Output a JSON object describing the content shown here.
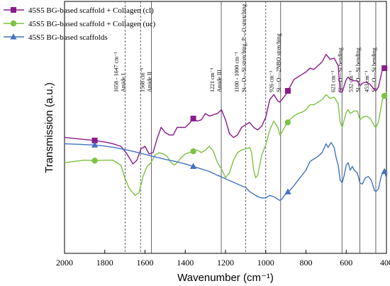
{
  "chart_data": {
    "type": "line",
    "title": "",
    "xlabel": "Wavenumber (cm⁻¹)",
    "ylabel": "Transmission (a.u.)",
    "xlim": [
      2000,
      400
    ],
    "x_reversed": true,
    "xticks": [
      2000,
      1800,
      1600,
      1400,
      1200,
      1000,
      800,
      600,
      400
    ],
    "y_ticks_shown": false,
    "grid": false,
    "legend_position": "top-left",
    "series": [
      {
        "name": "45S5 BG-based scaffold + Collagen (cl)",
        "color": "#8b1a8b",
        "marker": "square",
        "marker_x": [
          1850,
          1360,
          890,
          410
        ],
        "points": [
          [
            2000,
            0.46
          ],
          [
            1900,
            0.452
          ],
          [
            1850,
            0.448
          ],
          [
            1800,
            0.442
          ],
          [
            1760,
            0.435
          ],
          [
            1720,
            0.425
          ],
          [
            1690,
            0.395
          ],
          [
            1660,
            0.355
          ],
          [
            1640,
            0.37
          ],
          [
            1620,
            0.415
          ],
          [
            1600,
            0.425
          ],
          [
            1580,
            0.395
          ],
          [
            1560,
            0.4
          ],
          [
            1540,
            0.455
          ],
          [
            1520,
            0.5
          ],
          [
            1500,
            0.48
          ],
          [
            1480,
            0.47
          ],
          [
            1460,
            0.47
          ],
          [
            1440,
            0.5
          ],
          [
            1420,
            0.5
          ],
          [
            1400,
            0.5
          ],
          [
            1380,
            0.515
          ],
          [
            1360,
            0.535
          ],
          [
            1340,
            0.525
          ],
          [
            1320,
            0.53
          ],
          [
            1300,
            0.555
          ],
          [
            1280,
            0.545
          ],
          [
            1260,
            0.55
          ],
          [
            1240,
            0.555
          ],
          [
            1220,
            0.57
          ],
          [
            1200,
            0.53
          ],
          [
            1180,
            0.475
          ],
          [
            1160,
            0.46
          ],
          [
            1140,
            0.47
          ],
          [
            1120,
            0.5
          ],
          [
            1100,
            0.51
          ],
          [
            1080,
            0.52
          ],
          [
            1060,
            0.5
          ],
          [
            1040,
            0.49
          ],
          [
            1020,
            0.505
          ],
          [
            1000,
            0.54
          ],
          [
            980,
            0.61
          ],
          [
            960,
            0.63
          ],
          [
            940,
            0.605
          ],
          [
            930,
            0.6
          ],
          [
            920,
            0.61
          ],
          [
            900,
            0.63
          ],
          [
            880,
            0.66
          ],
          [
            860,
            0.69
          ],
          [
            840,
            0.7
          ],
          [
            820,
            0.71
          ],
          [
            800,
            0.72
          ],
          [
            780,
            0.735
          ],
          [
            760,
            0.73
          ],
          [
            740,
            0.745
          ],
          [
            720,
            0.76
          ],
          [
            700,
            0.79
          ],
          [
            680,
            0.77
          ],
          [
            660,
            0.775
          ],
          [
            640,
            0.745
          ],
          [
            630,
            0.64
          ],
          [
            620,
            0.64
          ],
          [
            600,
            0.69
          ],
          [
            590,
            0.7
          ],
          [
            580,
            0.69
          ],
          [
            560,
            0.685
          ],
          [
            545,
            0.685
          ],
          [
            532,
            0.665
          ],
          [
            520,
            0.675
          ],
          [
            500,
            0.68
          ],
          [
            480,
            0.67
          ],
          [
            460,
            0.65
          ],
          [
            453,
            0.645
          ],
          [
            440,
            0.66
          ],
          [
            420,
            0.73
          ],
          [
            400,
            0.74
          ]
        ]
      },
      {
        "name": "45S5 BG-based scaffold + Collagen (uc)",
        "color": "#7dc242",
        "marker": "circle",
        "marker_x": [
          1850,
          1360,
          890,
          410
        ],
        "points": [
          [
            2000,
            0.36
          ],
          [
            1900,
            0.37
          ],
          [
            1850,
            0.368
          ],
          [
            1800,
            0.37
          ],
          [
            1760,
            0.37
          ],
          [
            1720,
            0.35
          ],
          [
            1700,
            0.3
          ],
          [
            1680,
            0.26
          ],
          [
            1650,
            0.23
          ],
          [
            1630,
            0.24
          ],
          [
            1610,
            0.305
          ],
          [
            1590,
            0.345
          ],
          [
            1570,
            0.36
          ],
          [
            1550,
            0.39
          ],
          [
            1530,
            0.4
          ],
          [
            1510,
            0.395
          ],
          [
            1490,
            0.385
          ],
          [
            1470,
            0.36
          ],
          [
            1455,
            0.35
          ],
          [
            1440,
            0.36
          ],
          [
            1420,
            0.38
          ],
          [
            1400,
            0.395
          ],
          [
            1380,
            0.4
          ],
          [
            1360,
            0.405
          ],
          [
            1340,
            0.41
          ],
          [
            1320,
            0.4
          ],
          [
            1300,
            0.41
          ],
          [
            1280,
            0.425
          ],
          [
            1260,
            0.405
          ],
          [
            1240,
            0.36
          ],
          [
            1220,
            0.335
          ],
          [
            1200,
            0.3
          ],
          [
            1180,
            0.32
          ],
          [
            1160,
            0.37
          ],
          [
            1140,
            0.4
          ],
          [
            1120,
            0.41
          ],
          [
            1100,
            0.415
          ],
          [
            1080,
            0.42
          ],
          [
            1070,
            0.4
          ],
          [
            1060,
            0.33
          ],
          [
            1050,
            0.3
          ],
          [
            1040,
            0.31
          ],
          [
            1020,
            0.39
          ],
          [
            1000,
            0.43
          ],
          [
            980,
            0.49
          ],
          [
            960,
            0.525
          ],
          [
            940,
            0.5
          ],
          [
            930,
            0.47
          ],
          [
            920,
            0.48
          ],
          [
            900,
            0.51
          ],
          [
            880,
            0.53
          ],
          [
            860,
            0.545
          ],
          [
            840,
            0.555
          ],
          [
            820,
            0.56
          ],
          [
            800,
            0.57
          ],
          [
            780,
            0.59
          ],
          [
            760,
            0.59
          ],
          [
            740,
            0.6
          ],
          [
            720,
            0.61
          ],
          [
            700,
            0.63
          ],
          [
            680,
            0.615
          ],
          [
            660,
            0.62
          ],
          [
            640,
            0.595
          ],
          [
            630,
            0.52
          ],
          [
            620,
            0.5
          ],
          [
            600,
            0.56
          ],
          [
            590,
            0.57
          ],
          [
            580,
            0.555
          ],
          [
            560,
            0.565
          ],
          [
            545,
            0.565
          ],
          [
            532,
            0.53
          ],
          [
            520,
            0.54
          ],
          [
            500,
            0.545
          ],
          [
            480,
            0.535
          ],
          [
            460,
            0.505
          ],
          [
            453,
            0.5
          ],
          [
            440,
            0.52
          ],
          [
            420,
            0.61
          ],
          [
            400,
            0.64
          ]
        ]
      },
      {
        "name": "45S5 BG-based scaffolds",
        "color": "#4472c4",
        "marker": "triangle",
        "marker_x": [
          1850,
          1360,
          890,
          410
        ],
        "points": [
          [
            2000,
            0.435
          ],
          [
            1900,
            0.432
          ],
          [
            1850,
            0.43
          ],
          [
            1800,
            0.426
          ],
          [
            1750,
            0.42
          ],
          [
            1700,
            0.412
          ],
          [
            1650,
            0.403
          ],
          [
            1600,
            0.393
          ],
          [
            1550,
            0.383
          ],
          [
            1500,
            0.373
          ],
          [
            1450,
            0.365
          ],
          [
            1400,
            0.355
          ],
          [
            1360,
            0.345
          ],
          [
            1320,
            0.335
          ],
          [
            1280,
            0.325
          ],
          [
            1240,
            0.31
          ],
          [
            1200,
            0.296
          ],
          [
            1160,
            0.282
          ],
          [
            1120,
            0.268
          ],
          [
            1100,
            0.262
          ],
          [
            1080,
            0.245
          ],
          [
            1060,
            0.235
          ],
          [
            1040,
            0.225
          ],
          [
            1020,
            0.22
          ],
          [
            1000,
            0.22
          ],
          [
            980,
            0.23
          ],
          [
            960,
            0.225
          ],
          [
            940,
            0.215
          ],
          [
            930,
            0.21
          ],
          [
            920,
            0.215
          ],
          [
            900,
            0.238
          ],
          [
            880,
            0.25
          ],
          [
            860,
            0.268
          ],
          [
            840,
            0.29
          ],
          [
            820,
            0.31
          ],
          [
            800,
            0.33
          ],
          [
            780,
            0.365
          ],
          [
            760,
            0.375
          ],
          [
            740,
            0.385
          ],
          [
            720,
            0.4
          ],
          [
            700,
            0.435
          ],
          [
            690,
            0.42
          ],
          [
            675,
            0.44
          ],
          [
            660,
            0.42
          ],
          [
            650,
            0.38
          ],
          [
            640,
            0.35
          ],
          [
            630,
            0.29
          ],
          [
            620,
            0.28
          ],
          [
            610,
            0.31
          ],
          [
            600,
            0.35
          ],
          [
            590,
            0.36
          ],
          [
            580,
            0.33
          ],
          [
            570,
            0.345
          ],
          [
            560,
            0.33
          ],
          [
            545,
            0.32
          ],
          [
            532,
            0.28
          ],
          [
            520,
            0.275
          ],
          [
            505,
            0.3
          ],
          [
            490,
            0.305
          ],
          [
            475,
            0.29
          ],
          [
            460,
            0.25
          ],
          [
            453,
            0.245
          ],
          [
            440,
            0.255
          ],
          [
            425,
            0.31
          ],
          [
            410,
            0.325
          ],
          [
            400,
            0.3
          ]
        ]
      }
    ],
    "reference_lines": [
      {
        "x": 1699,
        "style": "dashed",
        "labels": [
          "1658 - 1647 cm⁻¹",
          "Amide I"
        ]
      },
      {
        "x": 1622,
        "style": "dashed",
        "labels": []
      },
      {
        "x": 1568,
        "style": "solid",
        "labels": [
          "1568 cm⁻¹",
          "Amide II"
        ]
      },
      {
        "x": 1221,
        "style": "solid",
        "labels": [
          "1221 cm⁻¹",
          "Amide III"
        ]
      },
      {
        "x": 1100,
        "style": "dashed",
        "labels": [
          "1100 - 1000 cm⁻¹",
          "Si—O—Si stretching, P—O stretching"
        ]
      },
      {
        "x": 1000,
        "style": "dashed",
        "labels": []
      },
      {
        "x": 926,
        "style": "solid",
        "labels": [
          "926 cm⁻¹",
          "Si—O—2NBO stretching"
        ]
      },
      {
        "x": 621,
        "style": "solid",
        "labels": [
          "621 cm⁻¹",
          "Si—O—Si bending"
        ]
      },
      {
        "x": 532,
        "style": "solid",
        "labels": [
          "532 cm⁻¹",
          "Si—O—Si bending"
        ]
      },
      {
        "x": 453,
        "style": "solid",
        "labels": [
          "453 cm⁻¹",
          "Si—O—Si bending"
        ]
      }
    ]
  }
}
